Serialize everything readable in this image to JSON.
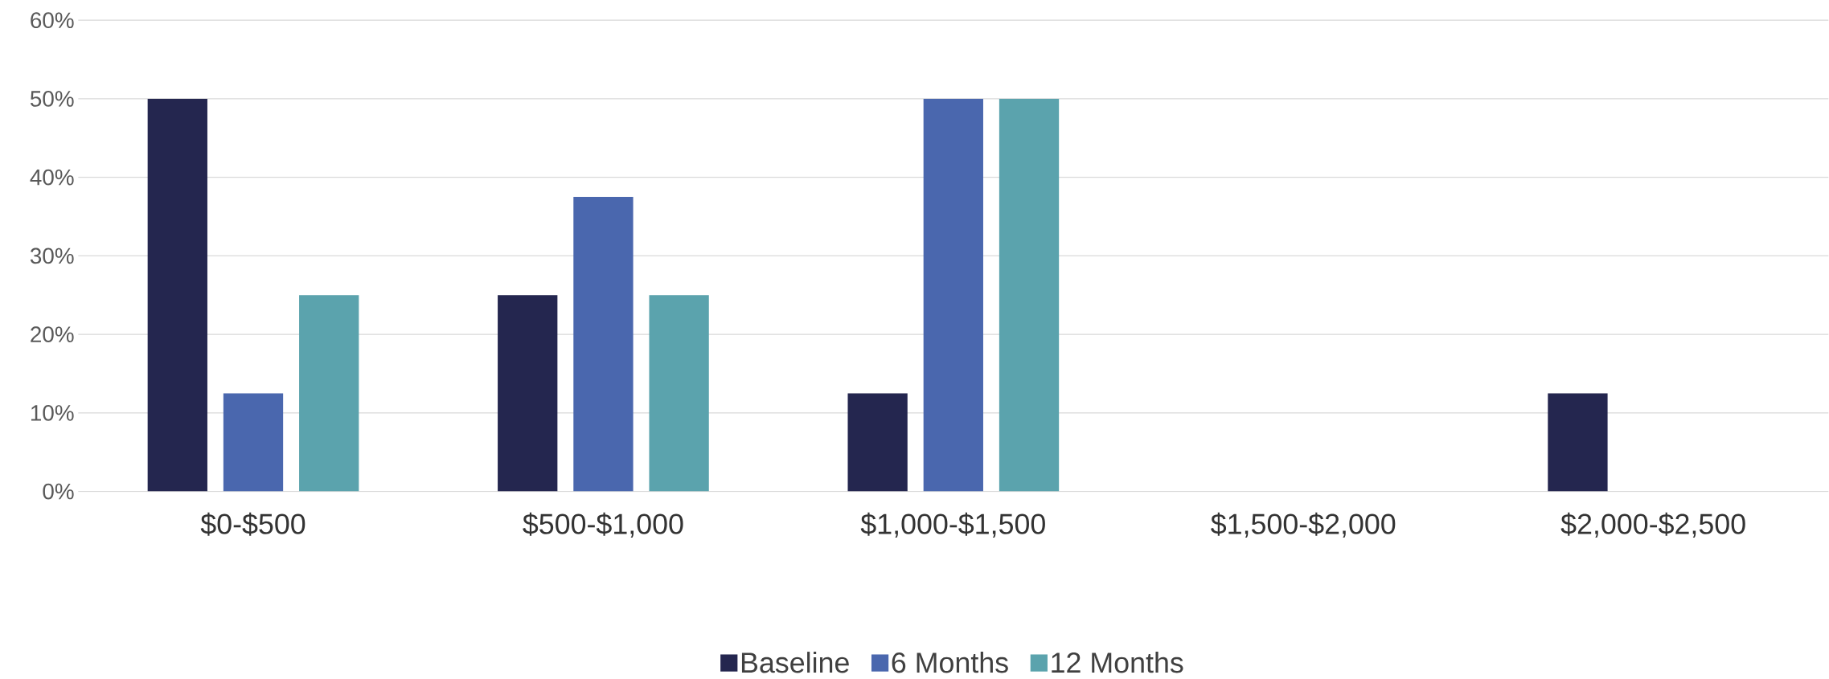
{
  "chart_data": {
    "type": "bar",
    "categories": [
      "$0-$500",
      "$500-$1,000",
      "$1,000-$1,500",
      "$1,500-$2,000",
      "$2,000-$2,500"
    ],
    "series": [
      {
        "name": "Baseline",
        "color": "#24264f",
        "values": [
          50,
          25,
          12.5,
          0,
          12.5
        ]
      },
      {
        "name": "6 Months",
        "color": "#4a67ae",
        "values": [
          12.5,
          37.5,
          50,
          0,
          0
        ]
      },
      {
        "name": "12 Months",
        "color": "#5ba3ad",
        "values": [
          25,
          25,
          50,
          0,
          0
        ]
      }
    ],
    "ylim": [
      0,
      60
    ],
    "yticks": [
      {
        "value": 0,
        "label": "0%"
      },
      {
        "value": 10,
        "label": "10%"
      },
      {
        "value": 20,
        "label": "20%"
      },
      {
        "value": 30,
        "label": "30%"
      },
      {
        "value": 40,
        "label": "40%"
      },
      {
        "value": 50,
        "label": "50%"
      },
      {
        "value": 60,
        "label": "60%"
      }
    ],
    "grid": "y",
    "legend": "bottom"
  }
}
